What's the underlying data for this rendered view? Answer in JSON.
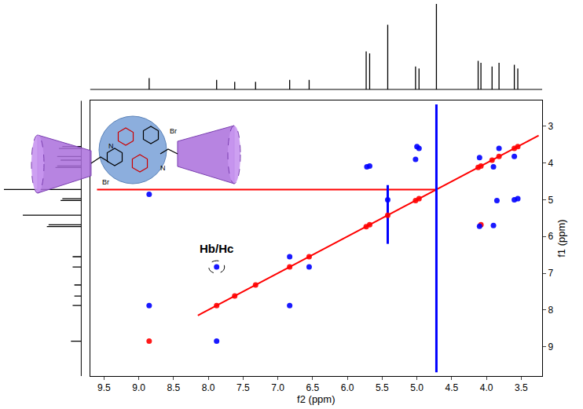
{
  "chart_data": {
    "type": "scatter",
    "xlabel": "f2 (ppm)",
    "ylabel": "f1 (ppm)",
    "xlim": [
      9.7,
      3.2
    ],
    "ylim": [
      9.8,
      2.3
    ],
    "xticks": [
      9.5,
      {
        "value": 9,
        "label": "9.0"
      },
      8.5,
      {
        "value": 8,
        "label": "8.0"
      },
      7.5,
      {
        "value": 7,
        "label": "7.0"
      },
      6.5,
      {
        "value": 6,
        "label": "6.0"
      },
      5.5,
      {
        "value": 5,
        "label": "5.0"
      },
      4.5,
      {
        "value": 4,
        "label": "4.0"
      },
      3.5
    ],
    "yticks": [
      3,
      4,
      5,
      6,
      7,
      8,
      9
    ],
    "grid": false,
    "series": [
      {
        "type": "line",
        "color": "#ff0000",
        "x": [
          8.15,
          3.25
        ],
        "y": [
          8.15,
          3.25
        ]
      },
      {
        "type": "line",
        "color": "#ff0000",
        "x": [
          9.6,
          4.72
        ],
        "y": [
          4.72,
          4.72
        ]
      },
      {
        "type": "line",
        "color": "#0000ff",
        "x": [
          4.72,
          4.72
        ],
        "y": [
          2.4,
          9.7
        ]
      },
      {
        "type": "line",
        "color": "#0000ff",
        "x": [
          5.42,
          5.42
        ],
        "y": [
          4.6,
          6.2
        ]
      },
      {
        "type": "scatter",
        "color": "#ff0000",
        "marker": "circle",
        "x": [
          8.85,
          7.88,
          7.62,
          7.32,
          6.83,
          6.55,
          5.73,
          5.68,
          5.42,
          5.02,
          4.97,
          4.12,
          4.08,
          3.92,
          3.82,
          3.6,
          3.55,
          4.08
        ],
        "y": [
          8.85,
          7.88,
          7.62,
          7.32,
          6.83,
          6.55,
          5.73,
          5.68,
          5.42,
          5.02,
          4.97,
          4.12,
          4.08,
          3.92,
          3.82,
          3.6,
          3.55,
          5.68
        ]
      },
      {
        "type": "scatter",
        "color": "#0000ff",
        "marker": "circle",
        "x": [
          8.85,
          7.88,
          8.85,
          7.88,
          6.83,
          6.83,
          6.55,
          5.72,
          5.68,
          5.0,
          4.97,
          5.02,
          5.42,
          4.1,
          3.9,
          3.82,
          3.6,
          4.1,
          3.6,
          3.85,
          3.55,
          3.9
        ],
        "y": [
          7.88,
          8.85,
          4.85,
          6.83,
          7.88,
          6.55,
          6.83,
          4.1,
          4.08,
          3.55,
          3.6,
          3.9,
          5.0,
          3.85,
          4.1,
          3.6,
          3.82,
          5.72,
          5.0,
          5.02,
          4.97,
          5.7
        ]
      }
    ],
    "annotations": [
      {
        "text": "Hb/Hc",
        "x": 7.88,
        "y": 6.83
      }
    ],
    "projection": {
      "ppm": [
        8.85,
        7.88,
        7.62,
        7.32,
        6.83,
        6.55,
        5.73,
        5.68,
        5.42,
        5.02,
        4.97,
        4.72,
        4.12,
        4.08,
        3.92,
        3.82,
        3.6,
        3.55
      ],
      "intensity": [
        0.06,
        0.05,
        0.04,
        0.04,
        0.05,
        0.05,
        0.2,
        0.19,
        0.34,
        0.12,
        0.11,
        1.0,
        0.15,
        0.14,
        0.12,
        0.14,
        0.13,
        0.11
      ],
      "intensity_lim": [
        -0.02,
        0.45
      ]
    },
    "cartoon_labels": [
      "Br",
      "Br",
      "N",
      "N"
    ]
  }
}
